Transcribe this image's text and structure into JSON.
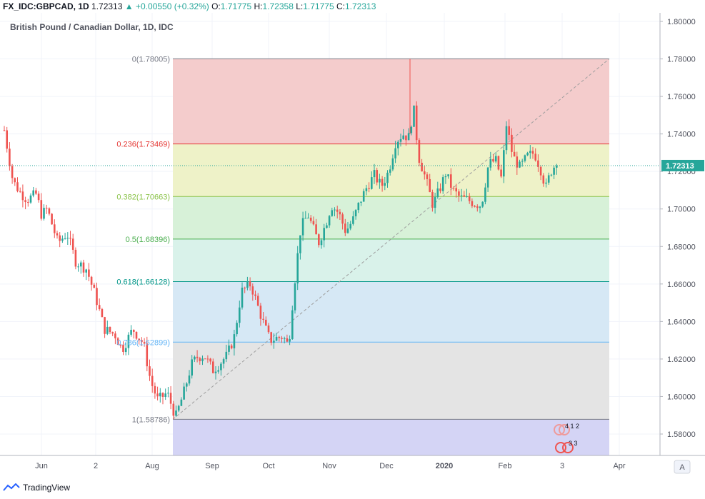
{
  "header": {
    "symbol": "FX_IDC:GBPCAD, 1D",
    "last": "1.72313",
    "change": "+0.00550 (+0.32%)",
    "o_label": "O:",
    "o": "1.71775",
    "h_label": "H:",
    "h": "1.72358",
    "l_label": "L:",
    "l": "1.71775",
    "c_label": "C:",
    "c": "1.72313"
  },
  "chart_title": "British Pound / Canadian Dollar, 1D, IDC",
  "price_tag": "1.72313",
  "watermark": "TradingView",
  "time_axis_button": "A",
  "event_badges": {
    "top": "4 1 2",
    "bottom": "3 3"
  },
  "colors": {
    "up": "#26a69a",
    "down": "#ef5350",
    "last_line": "#26a69a"
  },
  "chart_data": {
    "type": "candlestick",
    "ylim": [
      1.565,
      1.8
    ],
    "y_ticks": [
      "1.80000",
      "1.78000",
      "1.76000",
      "1.74000",
      "1.72000",
      "1.70000",
      "1.68000",
      "1.66000",
      "1.64000",
      "1.62000",
      "1.60000",
      "1.58000"
    ],
    "x_ticks": [
      "Jun",
      "2",
      "Aug",
      "Sep",
      "Oct",
      "Nov",
      "Dec",
      "2020",
      "Feb",
      "3",
      "Apr"
    ],
    "fib_levels": [
      {
        "ratio": "0",
        "price": 1.78005,
        "label": "0(1.78005)",
        "color": "#787b86",
        "fill": "#f4cccc"
      },
      {
        "ratio": "0.236",
        "price": 1.73469,
        "label": "0.236(1.73469)",
        "color": "#e53935",
        "fill": "#eef2c8"
      },
      {
        "ratio": "0.382",
        "price": 1.70663,
        "label": "0.382(1.70663)",
        "color": "#8bc34a",
        "fill": "#d7f1d8"
      },
      {
        "ratio": "0.5",
        "price": 1.68396,
        "label": "0.5(1.68396)",
        "color": "#4caf50",
        "fill": "#d9f2ea"
      },
      {
        "ratio": "0.618",
        "price": 1.66128,
        "label": "0.618(1.66128)",
        "color": "#009688",
        "fill": "#d6e8f5"
      },
      {
        "ratio": "0.786",
        "price": 1.62899,
        "label": "0.786(1.62899)",
        "color": "#64b5f6",
        "fill": "#e4e4e4"
      },
      {
        "ratio": "1",
        "price": 1.58786,
        "label": "1(1.58786)",
        "color": "#787b86",
        "fill": "#d4d4f5"
      }
    ],
    "trend_line": {
      "from_price": 1.58786,
      "to_price": 1.78005
    },
    "candle_anchors": [
      [
        0,
        1.742
      ],
      [
        12,
        1.715
      ],
      [
        22,
        1.709
      ],
      [
        32,
        1.705
      ],
      [
        45,
        1.708
      ],
      [
        52,
        1.697
      ],
      [
        60,
        1.7
      ],
      [
        75,
        1.682
      ],
      [
        88,
        1.687
      ],
      [
        100,
        1.672
      ],
      [
        115,
        1.668
      ],
      [
        128,
        1.653
      ],
      [
        140,
        1.636
      ],
      [
        155,
        1.633
      ],
      [
        165,
        1.625
      ],
      [
        180,
        1.636
      ],
      [
        195,
        1.628
      ],
      [
        205,
        1.608
      ],
      [
        215,
        1.598
      ],
      [
        228,
        1.602
      ],
      [
        240,
        1.589
      ],
      [
        252,
        1.603
      ],
      [
        262,
        1.617
      ],
      [
        270,
        1.621
      ],
      [
        280,
        1.622
      ],
      [
        292,
        1.614
      ],
      [
        300,
        1.617
      ],
      [
        312,
        1.622
      ],
      [
        322,
        1.632
      ],
      [
        332,
        1.656
      ],
      [
        345,
        1.66
      ],
      [
        355,
        1.648
      ],
      [
        362,
        1.64
      ],
      [
        372,
        1.63
      ],
      [
        380,
        1.631
      ],
      [
        390,
        1.632
      ],
      [
        398,
        1.627
      ],
      [
        405,
        1.656
      ],
      [
        415,
        1.69
      ],
      [
        425,
        1.697
      ],
      [
        432,
        1.69
      ],
      [
        440,
        1.682
      ],
      [
        450,
        1.692
      ],
      [
        458,
        1.702
      ],
      [
        468,
        1.698
      ],
      [
        478,
        1.688
      ],
      [
        488,
        1.694
      ],
      [
        498,
        1.704
      ],
      [
        508,
        1.712
      ],
      [
        518,
        1.718
      ],
      [
        528,
        1.712
      ],
      [
        538,
        1.72
      ],
      [
        548,
        1.736
      ],
      [
        558,
        1.74
      ],
      [
        566,
        1.738
      ],
      [
        573,
        1.754
      ],
      [
        580,
        1.728
      ],
      [
        590,
        1.716
      ],
      [
        600,
        1.702
      ],
      [
        610,
        1.711
      ],
      [
        618,
        1.719
      ],
      [
        628,
        1.71
      ],
      [
        638,
        1.706
      ],
      [
        648,
        1.705
      ],
      [
        658,
        1.703
      ],
      [
        668,
        1.702
      ],
      [
        678,
        1.724
      ],
      [
        688,
        1.726
      ],
      [
        696,
        1.716
      ],
      [
        703,
        1.745
      ],
      [
        712,
        1.728
      ],
      [
        722,
        1.722
      ],
      [
        732,
        1.728
      ],
      [
        742,
        1.73
      ],
      [
        752,
        1.72
      ],
      [
        758,
        1.711
      ],
      [
        765,
        1.72
      ],
      [
        772,
        1.724
      ],
      [
        782,
        1.723
      ]
    ]
  }
}
